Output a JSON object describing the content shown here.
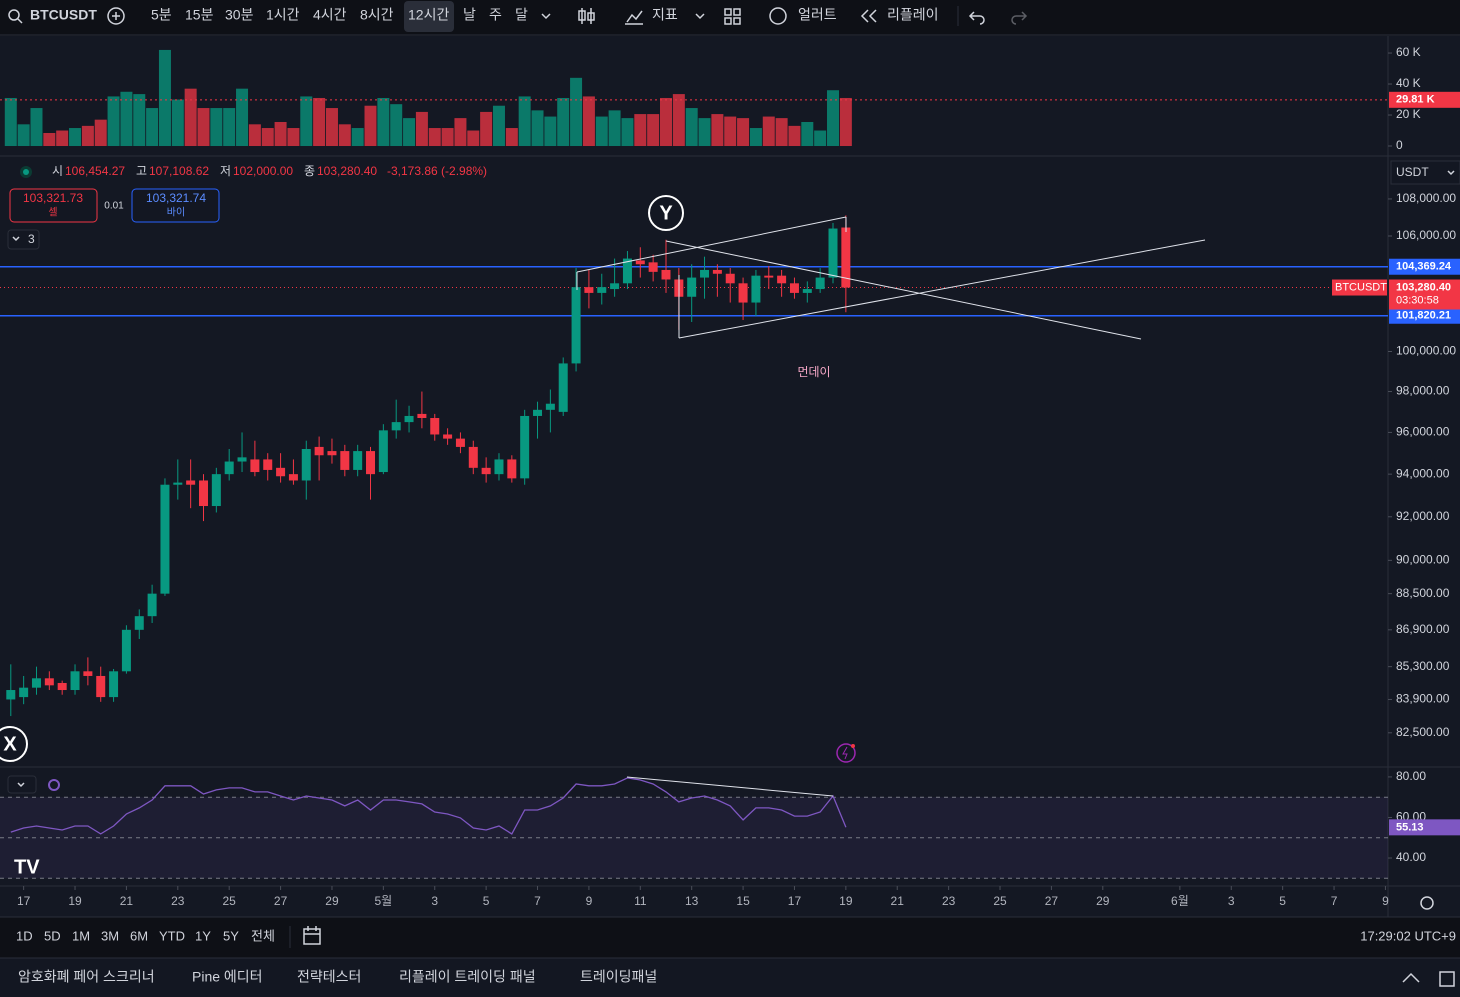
{
  "toolbar": {
    "symbol": "BTCUSDT",
    "intervals": [
      {
        "label": "5분"
      },
      {
        "label": "15분"
      },
      {
        "label": "30분"
      },
      {
        "label": "1시간"
      },
      {
        "label": "4시간"
      },
      {
        "label": "8시간"
      },
      {
        "label": "12시간",
        "active": true
      },
      {
        "label": "날"
      },
      {
        "label": "주"
      },
      {
        "label": "달"
      }
    ],
    "indicators": "지표",
    "alert": "얼러트",
    "replay": "리플레이"
  },
  "legend": {
    "open_key": "시",
    "open": "106,454.27",
    "high_key": "고",
    "high": "107,108.62",
    "low_key": "저",
    "low": "102,000.00",
    "close_key": "종",
    "close": "103,280.40",
    "change": "-3,173.86 (-2.98%)"
  },
  "order": {
    "sell_price": "103,321.73",
    "sell": "셀",
    "spread": "0.01",
    "buy_price": "103,321.74",
    "buy": "바이"
  },
  "collapse_count": 3,
  "annotations": {
    "y_marker": "Y",
    "x_marker": "X",
    "note": "먼데이"
  },
  "currency": "USDT",
  "chart_data": [
    {
      "type": "candlestick",
      "symbol_tag": "BTCUSDT",
      "up_color": "#089981",
      "down_color": "#f23645",
      "log_scale": true,
      "open": [
        83900,
        84000,
        84400,
        84800,
        84600,
        84300,
        85100,
        84900,
        84000,
        85100,
        86900,
        87500,
        88500,
        93500,
        93700,
        93700,
        92500,
        94000,
        94600,
        94700,
        94700,
        94300,
        94000,
        93700,
        95300,
        95100,
        95100,
        94200,
        95100,
        94100,
        96100,
        96500,
        96900,
        96700,
        95900,
        95700,
        95300,
        94300,
        94000,
        94700,
        93800,
        96800,
        97100,
        97000,
        99400,
        103300,
        103000,
        103200,
        103500,
        104700,
        104600,
        104200,
        103700,
        102800,
        103800,
        104200,
        104000,
        103500,
        102500,
        103900,
        103900,
        103500,
        103000,
        103200,
        103800,
        106454.27
      ],
      "high": [
        85400,
        84900,
        85300,
        85100,
        84700,
        85400,
        85700,
        85300,
        85200,
        87100,
        87800,
        88900,
        93800,
        94700,
        94700,
        94000,
        94300,
        95200,
        96000,
        95600,
        95000,
        95000,
        94700,
        95600,
        95800,
        95700,
        95400,
        95400,
        95300,
        96400,
        97600,
        97300,
        98000,
        96900,
        96200,
        96000,
        95600,
        94800,
        95000,
        94900,
        97100,
        97500,
        98100,
        99700,
        104300,
        104200,
        104000,
        104800,
        105200,
        105400,
        105000,
        105800,
        104300,
        104500,
        104900,
        104500,
        104300,
        103800,
        104200,
        104400,
        104200,
        103800,
        103600,
        104300,
        106700,
        107108.62
      ],
      "low": [
        83200,
        83700,
        84100,
        84300,
        84100,
        84100,
        84500,
        83800,
        83800,
        85000,
        86500,
        87200,
        88400,
        92800,
        92400,
        91800,
        92200,
        93700,
        94100,
        93900,
        93700,
        93600,
        93500,
        92800,
        93700,
        94500,
        93900,
        93900,
        92800,
        94000,
        95700,
        96000,
        96200,
        95600,
        95400,
        95000,
        94000,
        93600,
        93700,
        93600,
        93500,
        95700,
        96000,
        96800,
        99000,
        102200,
        102400,
        102800,
        103200,
        103800,
        103600,
        103000,
        101100,
        101500,
        102700,
        102800,
        102500,
        101600,
        101800,
        103200,
        102800,
        102700,
        102500,
        103000,
        103500,
        102000
      ],
      "close": [
        84300,
        84400,
        84800,
        84500,
        84300,
        85100,
        84900,
        84000,
        85100,
        86900,
        87500,
        88500,
        93500,
        93600,
        93500,
        92500,
        94000,
        94600,
        94800,
        94100,
        94200,
        93900,
        93700,
        95200,
        94900,
        94900,
        94200,
        95100,
        94000,
        96100,
        96500,
        96800,
        96700,
        95900,
        95700,
        95300,
        94300,
        94000,
        94700,
        93800,
        96800,
        97100,
        97400,
        99400,
        103300,
        103000,
        103300,
        103500,
        104800,
        104500,
        104100,
        103700,
        102800,
        103800,
        104200,
        104000,
        103500,
        102500,
        103900,
        103800,
        103500,
        103000,
        103200,
        103800,
        106400,
        103280.4
      ],
      "xlim": [
        -0.84,
        107.2
      ],
      "xticks": [
        {
          "value": 1,
          "label": "17"
        },
        {
          "value": 5,
          "label": "19"
        },
        {
          "value": 9,
          "label": "21"
        },
        {
          "value": 13,
          "label": "23"
        },
        {
          "value": 17,
          "label": "25"
        },
        {
          "value": 21,
          "label": "27"
        },
        {
          "value": 25,
          "label": "29"
        },
        {
          "value": 29,
          "label": "5월"
        },
        {
          "value": 33,
          "label": "3"
        },
        {
          "value": 37,
          "label": "5"
        },
        {
          "value": 41,
          "label": "7"
        },
        {
          "value": 45,
          "label": "9"
        },
        {
          "value": 49,
          "label": "11"
        },
        {
          "value": 53,
          "label": "13"
        },
        {
          "value": 57,
          "label": "15"
        },
        {
          "value": 61,
          "label": "17"
        },
        {
          "value": 65,
          "label": "19"
        },
        {
          "value": 69,
          "label": "21"
        },
        {
          "value": 73,
          "label": "23"
        },
        {
          "value": 77,
          "label": "25"
        },
        {
          "value": 81,
          "label": "27"
        },
        {
          "value": 85,
          "label": "29"
        },
        {
          "value": 91,
          "label": "6월"
        },
        {
          "value": 95,
          "label": "3"
        },
        {
          "value": 99,
          "label": "5"
        },
        {
          "value": 103,
          "label": "7"
        },
        {
          "value": 107,
          "label": "9"
        }
      ],
      "ylim": [
        81130,
        110310
      ],
      "yticks": [
        {
          "value": 108000,
          "label": "108,000.00"
        },
        {
          "value": 106000,
          "label": "106,000.00"
        },
        {
          "value": 100000,
          "label": "100,000.00"
        },
        {
          "value": 98000,
          "label": "98,000.00"
        },
        {
          "value": 96000,
          "label": "96,000.00"
        },
        {
          "value": 94000,
          "label": "94,000.00"
        },
        {
          "value": 92000,
          "label": "92,000.00"
        },
        {
          "value": 90000,
          "label": "90,000.00"
        },
        {
          "value": 88500,
          "label": "88,500.00"
        },
        {
          "value": 86900,
          "label": "86,900.00"
        },
        {
          "value": 85300,
          "label": "85,300.00"
        },
        {
          "value": 83900,
          "label": "83,900.00"
        },
        {
          "value": 82500,
          "label": "82,500.00"
        }
      ],
      "price_lines": [
        {
          "value": 104369.24,
          "label": "104,369.24",
          "color": "#2962ff"
        },
        {
          "value": 101820.21,
          "label": "101,820.21",
          "color": "#2962ff"
        }
      ],
      "last_price": {
        "value": 103280.4,
        "label": "103,280.40",
        "countdown": "03:30:58"
      }
    },
    {
      "type": "bar",
      "up_color": "#089981",
      "down_color": "#f23645",
      "values": [
        31000,
        14000,
        24500,
        8400,
        10000,
        11600,
        13000,
        17000,
        32000,
        35000,
        33500,
        24500,
        62000,
        30000,
        37000,
        24500,
        24500,
        24500,
        37000,
        14000,
        11600,
        15500,
        11600,
        32000,
        31000,
        24500,
        14000,
        11600,
        26000,
        31000,
        27000,
        18000,
        22000,
        11600,
        11600,
        18000,
        10000,
        22000,
        26000,
        11600,
        32000,
        23000,
        19000,
        31000,
        44000,
        32000,
        19000,
        23000,
        18000,
        20600,
        20600,
        31000,
        33500,
        24500,
        18000,
        20600,
        19000,
        18000,
        11600,
        19000,
        18000,
        13000,
        15500,
        10000,
        36000,
        31000
      ],
      "ylim": [
        -5800,
        69700
      ],
      "yticks": [
        0,
        {
          "value": 20000,
          "label": "20 K"
        },
        {
          "value": 40000,
          "label": "40 K"
        },
        {
          "value": 60000,
          "label": "60 K"
        }
      ],
      "ma": {
        "value": 29810,
        "label": "29.81 K",
        "color": "#f23645"
      }
    },
    {
      "type": "line",
      "color": "#7e57c2",
      "values": [
        52.8,
        54.8,
        55.8,
        54.8,
        53.8,
        55.8,
        55.8,
        51.9,
        55.8,
        61.7,
        64.7,
        68.6,
        75.6,
        75.6,
        75.6,
        71.6,
        73.6,
        74.6,
        74.6,
        72.6,
        72.6,
        70.6,
        68.6,
        70.6,
        69.6,
        68.6,
        65.7,
        68.6,
        63.7,
        68.6,
        68.6,
        67.7,
        66.7,
        62.7,
        61.7,
        59.8,
        54.8,
        53.8,
        55.8,
        51.9,
        63.7,
        63.7,
        65.7,
        69.6,
        76.5,
        75.6,
        75.6,
        76.5,
        79.5,
        78.5,
        76.5,
        72.6,
        67.7,
        69.6,
        70.6,
        68.6,
        65.7,
        58.8,
        64.7,
        64.7,
        63.7,
        60.7,
        60.7,
        62.7,
        70.6,
        55.13
      ],
      "ylim": [
        26.2,
        84.4
      ],
      "yticks": [
        {
          "value": 80,
          "label": "80.00"
        },
        {
          "value": 60,
          "label": "60.00"
        },
        {
          "value": 40,
          "label": "40.00"
        }
      ],
      "bands": [
        70,
        50,
        30
      ]
    }
  ],
  "range_bar": {
    "ranges": [
      "1D",
      "5D",
      "1M",
      "3M",
      "6M",
      "YTD",
      "1Y",
      "5Y",
      "전체"
    ],
    "clock": "17:29:02 UTC+9"
  },
  "tabs": [
    "암호화폐 페어 스크리너",
    "Pine 에디터",
    "전략테스터",
    "리플레이 트레이딩 패널",
    "트레이딩패널"
  ]
}
